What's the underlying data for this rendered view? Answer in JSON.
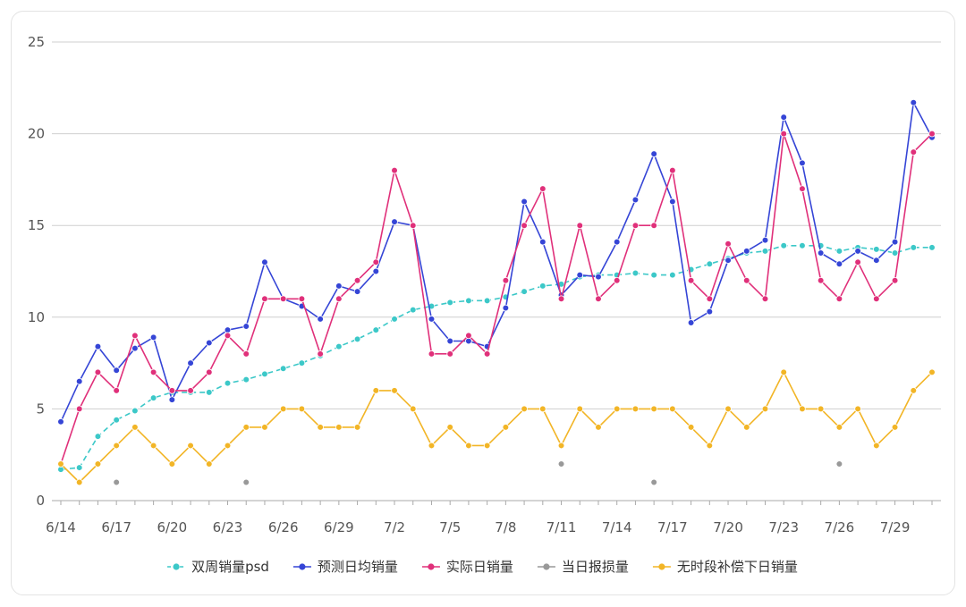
{
  "chart_data": {
    "type": "line",
    "title": "",
    "xlabel": "",
    "ylabel": "",
    "ylim": [
      0,
      25
    ],
    "y_ticks": [
      "0",
      "5",
      "10",
      "15",
      "20",
      "25"
    ],
    "grid": true,
    "legend_position": "bottom",
    "x": [
      "6/14",
      "6/15",
      "6/16",
      "6/17",
      "6/18",
      "6/19",
      "6/20",
      "6/21",
      "6/22",
      "6/23",
      "6/24",
      "6/25",
      "6/26",
      "6/27",
      "6/28",
      "6/29",
      "6/30",
      "7/1",
      "7/2",
      "7/3",
      "7/4",
      "7/5",
      "7/6",
      "7/7",
      "7/8",
      "7/9",
      "7/10",
      "7/11",
      "7/12",
      "7/13",
      "7/14",
      "7/15",
      "7/16",
      "7/17",
      "7/18",
      "7/19",
      "7/20",
      "7/21",
      "7/22",
      "7/23",
      "7/24",
      "7/25",
      "7/26",
      "7/27",
      "7/28",
      "7/29",
      "7/30",
      "7/31"
    ],
    "x_tick_labels": [
      "6/14",
      "6/17",
      "6/20",
      "6/23",
      "6/26",
      "6/29",
      "7/2",
      "7/5",
      "7/8",
      "7/11",
      "7/14",
      "7/17",
      "7/20",
      "7/23",
      "7/26",
      "7/29"
    ],
    "series": [
      {
        "name": "双周销量psd",
        "color": "#3cc8c8",
        "dashed": true,
        "values": [
          1.7,
          1.8,
          3.5,
          4.4,
          4.9,
          5.6,
          5.9,
          5.9,
          5.9,
          6.4,
          6.6,
          6.9,
          7.2,
          7.5,
          7.9,
          8.4,
          8.8,
          9.3,
          9.9,
          10.4,
          10.6,
          10.8,
          10.9,
          10.9,
          11.1,
          11.4,
          11.7,
          11.8,
          12.2,
          12.3,
          12.3,
          12.4,
          12.3,
          12.3,
          12.6,
          12.9,
          13.2,
          13.5,
          13.6,
          13.9,
          13.9,
          13.9,
          13.6,
          13.8,
          13.7,
          13.5,
          13.8,
          13.8
        ]
      },
      {
        "name": "预测日均销量",
        "color": "#3545d6",
        "dashed": false,
        "values": [
          4.3,
          6.5,
          8.4,
          7.1,
          8.3,
          8.9,
          5.5,
          7.5,
          8.6,
          9.3,
          9.5,
          13.0,
          11.0,
          10.6,
          9.9,
          11.7,
          11.4,
          12.5,
          15.2,
          15.0,
          9.9,
          8.7,
          8.7,
          8.4,
          10.5,
          16.3,
          14.1,
          11.2,
          12.3,
          12.2,
          14.1,
          16.4,
          18.9,
          16.3,
          9.7,
          10.3,
          13.1,
          13.6,
          14.2,
          20.9,
          18.4,
          13.5,
          12.9,
          13.6,
          13.1,
          14.1,
          21.7,
          19.8
        ]
      },
      {
        "name": "实际日销量",
        "color": "#e0307a",
        "dashed": false,
        "values": [
          2,
          5,
          7,
          6,
          9,
          7,
          6,
          6,
          7,
          9,
          8,
          11,
          11,
          11,
          8,
          11,
          12,
          13,
          18,
          15,
          8,
          8,
          9,
          8,
          12,
          15,
          17,
          11,
          15,
          11,
          12,
          15,
          15,
          18,
          12,
          11,
          14,
          12,
          11,
          20,
          17,
          12,
          11,
          13,
          11,
          12,
          19,
          20
        ]
      },
      {
        "name": "当日报损量",
        "color": "#999999",
        "dashed": false,
        "points_only": true,
        "values": [
          null,
          null,
          null,
          1,
          null,
          null,
          null,
          null,
          null,
          null,
          1,
          null,
          null,
          null,
          null,
          null,
          null,
          null,
          null,
          null,
          null,
          null,
          null,
          null,
          null,
          null,
          null,
          2,
          null,
          null,
          null,
          null,
          1,
          null,
          null,
          null,
          null,
          null,
          null,
          null,
          null,
          null,
          2,
          null,
          null,
          null,
          null,
          null
        ]
      },
      {
        "name": "无时段补偿下日销量",
        "color": "#f2b526",
        "dashed": false,
        "values": [
          2,
          1,
          2,
          3,
          4,
          3,
          2,
          3,
          2,
          3,
          4,
          4,
          5,
          5,
          4,
          4,
          4,
          6,
          6,
          5,
          3,
          4,
          3,
          3,
          4,
          5,
          5,
          3,
          5,
          4,
          5,
          5,
          5,
          5,
          4,
          3,
          5,
          4,
          5,
          7,
          5,
          5,
          4,
          5,
          3,
          4,
          6,
          7
        ]
      }
    ]
  }
}
